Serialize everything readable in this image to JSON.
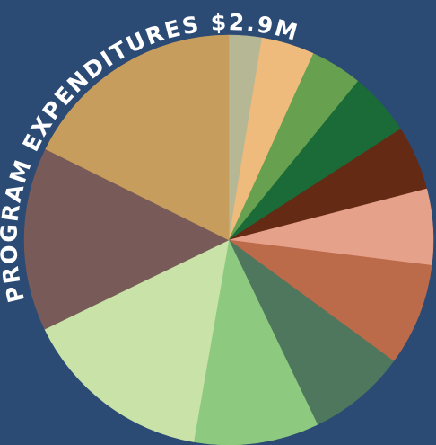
{
  "chart_data": {
    "type": "pie",
    "title": "PROGRAM EXPENDITURES $2.9M",
    "values": [
      2.6,
      4.2,
      4.1,
      5.0,
      5.1,
      6.0,
      8.1,
      7.8,
      9.9,
      15.1,
      14.5,
      17.7
    ],
    "colors": [
      "#b6b794",
      "#efbb7c",
      "#67a04f",
      "#1a6b38",
      "#652a14",
      "#e6a18a",
      "#bb6a4a",
      "#4e775e",
      "#8dc97e",
      "#c9e2a8",
      "#785a58",
      "#c79d5d"
    ]
  }
}
